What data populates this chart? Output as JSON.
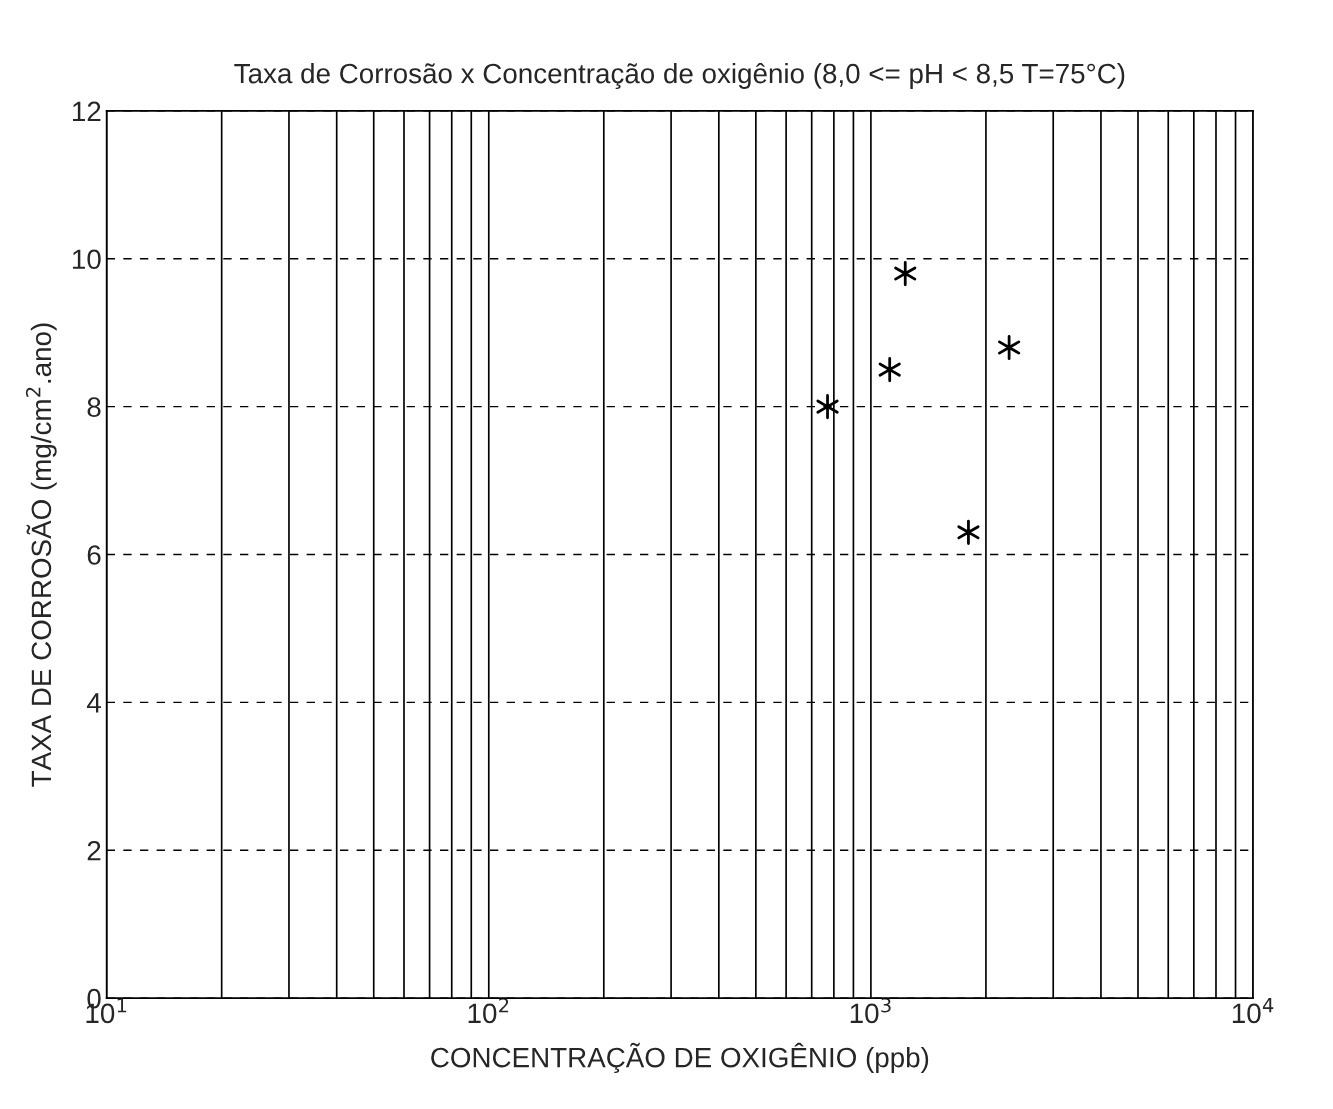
{
  "chart_data": {
    "type": "scatter",
    "title": "Taxa de Corrosão x Concentração de oxigênio (8,0 <= pH < 8,5 T=75°C)",
    "xlabel": "CONCENTRAÇÃO DE OXIGÊNIO (ppb)",
    "ylabel": "TAXA DE CORROSÃO (mg/cm$^{2}$.ano)",
    "log": "x",
    "grid": true,
    "marker": "cross",
    "xlim": [
      10,
      10000
    ],
    "ylim": [
      0,
      12
    ],
    "xticks": [
      {
        "value": 10,
        "label": "10$^{1}$"
      },
      {
        "value": 100,
        "label": "10$^{2}$"
      },
      {
        "value": 1000,
        "label": "10$^{3}$"
      },
      {
        "value": 10000,
        "label": "10$^{4}$"
      }
    ],
    "yticks": [
      0,
      2,
      4,
      6,
      8,
      10,
      12
    ],
    "series": [
      {
        "color": "#000000",
        "x": [
          1800,
          770,
          1120,
          2300,
          1230
        ],
        "values": [
          6.3,
          8.0,
          8.5,
          8.8,
          9.8
        ]
      }
    ]
  }
}
